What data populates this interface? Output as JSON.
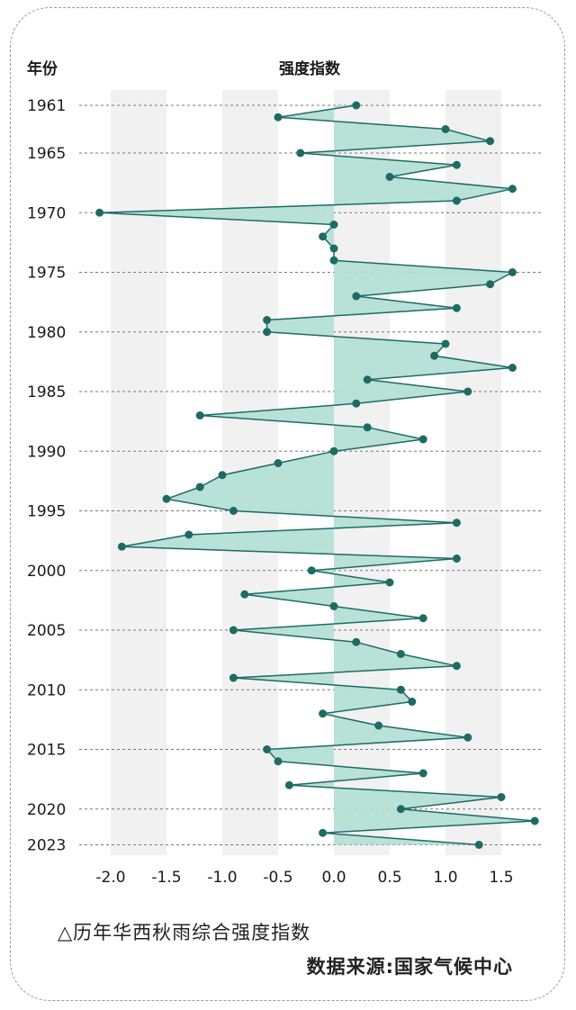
{
  "chart_data": {
    "type": "line",
    "title": "强度指数",
    "ylabel": "年份",
    "x_range": [
      -2.0,
      1.8
    ],
    "x_ticks": [
      "-2.0",
      "-1.5",
      "-1.0",
      "-0.5",
      "0.0",
      "0.5",
      "1.0",
      "1.5"
    ],
    "x_tick_values": [
      -2.0,
      -1.5,
      -1.0,
      -0.5,
      0.0,
      0.5,
      1.0,
      1.5
    ],
    "year_labels": [
      "1961",
      "1965",
      "1970",
      "1975",
      "1980",
      "1985",
      "1990",
      "1995",
      "2000",
      "2005",
      "2010",
      "2015",
      "2020",
      "2023"
    ],
    "series": [
      {
        "name": "华西秋雨综合强度指数",
        "x": [
          1961,
          1962,
          1963,
          1964,
          1965,
          1966,
          1967,
          1968,
          1969,
          1970,
          1971,
          1972,
          1973,
          1974,
          1975,
          1976,
          1977,
          1978,
          1979,
          1980,
          1981,
          1982,
          1983,
          1984,
          1985,
          1986,
          1987,
          1988,
          1989,
          1990,
          1991,
          1992,
          1993,
          1994,
          1995,
          1996,
          1997,
          1998,
          1999,
          2000,
          2001,
          2002,
          2003,
          2004,
          2005,
          2006,
          2007,
          2008,
          2009,
          2010,
          2011,
          2012,
          2013,
          2014,
          2015,
          2016,
          2017,
          2018,
          2019,
          2020,
          2021,
          2022,
          2023
        ],
        "values": [
          0.2,
          -0.5,
          1.0,
          1.4,
          -0.3,
          1.1,
          0.5,
          1.6,
          1.1,
          -2.1,
          0.0,
          -0.1,
          0.0,
          0.0,
          1.6,
          1.4,
          0.2,
          1.1,
          -0.6,
          -0.6,
          1.0,
          0.9,
          1.6,
          0.3,
          1.2,
          0.2,
          -1.2,
          0.3,
          0.8,
          0.0,
          -0.5,
          -1.0,
          -1.2,
          -1.5,
          -0.9,
          1.1,
          -1.3,
          -1.9,
          1.1,
          -0.2,
          0.5,
          -0.8,
          0.0,
          0.8,
          -0.9,
          0.2,
          0.6,
          1.1,
          -0.9,
          0.6,
          0.7,
          -0.1,
          0.4,
          1.2,
          -0.6,
          -0.5,
          0.8,
          -0.4,
          1.5,
          0.6,
          1.8,
          -0.1,
          1.3
        ]
      }
    ],
    "colors": {
      "line": "#1e6b64",
      "fill": "#b4dfd6",
      "band": "#f1f1f1",
      "grid": "#777777",
      "text": "#1a1a1a"
    }
  },
  "caption": "△历年华西秋雨综合强度指数",
  "source": "数据来源:国家气候中心"
}
